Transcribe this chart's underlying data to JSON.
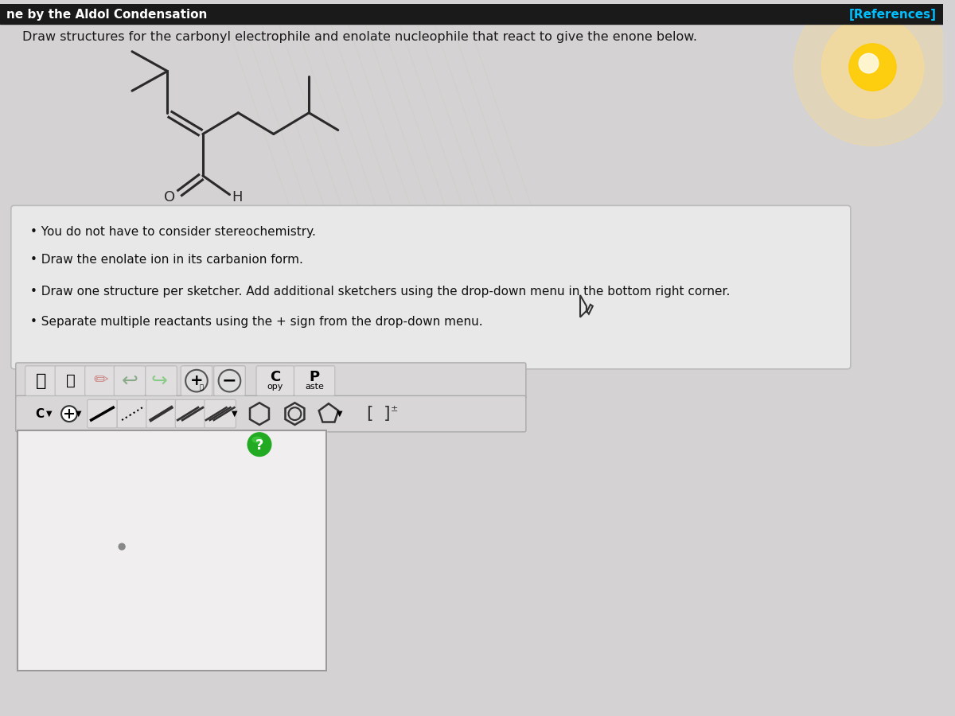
{
  "title_bar_text": "ne by the Aldol Condensation",
  "references_text": "[References]",
  "instruction_text": "Draw structures for the carbonyl electrophile and enolate nucleophile that react to give the enone below.",
  "bullet_points": [
    "You do not have to consider stereochemistry.",
    "Draw the enolate ion in its carbanion form.",
    "Draw one structure per sketcher. Add additional sketchers using the drop-down menu in the bottom right corner.",
    "Separate multiple reactants using the + sign from the drop-down menu."
  ],
  "bg_color": "#d4d2d2",
  "title_bar_color": "#1a1a1a",
  "title_text_color": "#ffffff",
  "references_color": "#00bfff",
  "instruction_text_color": "#1a1a1a",
  "bullet_box_bg": "#e8e8e8",
  "bullet_box_edge": "#bbbbbb",
  "sketcher_box_color": "#f0eeee",
  "sketcher_box_edge": "#999999",
  "toolbar_bg": "#d8d6d6",
  "toolbar_edge": "#aaaaaa",
  "glow_color_outer": "#ffdd88",
  "glow_color_inner": "#ffcc00",
  "mol_bond_color": "#333333"
}
